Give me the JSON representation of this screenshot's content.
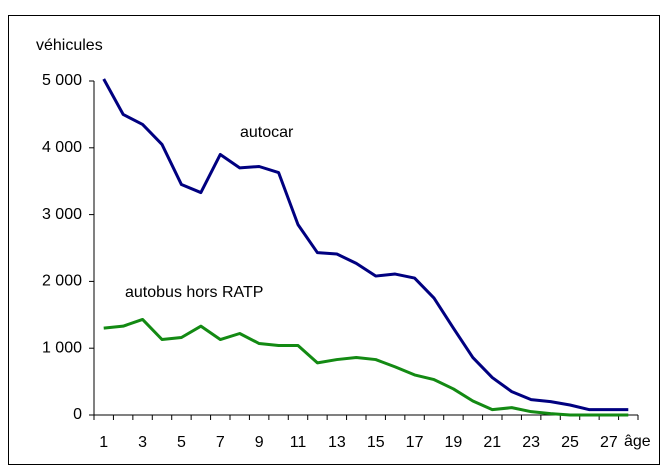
{
  "chart_data": {
    "type": "line",
    "y_label": "véhicules",
    "x_label": "âge",
    "categories": [
      "1",
      null,
      "3",
      null,
      "5",
      null,
      "7",
      null,
      "9",
      null,
      "11",
      null,
      "13",
      null,
      "15",
      null,
      "17",
      null,
      "19",
      null,
      "21",
      null,
      "23",
      null,
      "25",
      null,
      "27",
      null
    ],
    "series": [
      {
        "name": "autocar",
        "color": "#000080",
        "values": [
          5030,
          4500,
          4350,
          4050,
          3450,
          3330,
          3900,
          3700,
          3720,
          3630,
          2850,
          2430,
          2410,
          2270,
          2080,
          2110,
          2050,
          1750,
          1300,
          860,
          560,
          350,
          230,
          200,
          150,
          80,
          80,
          80
        ]
      },
      {
        "name": "autobus hors RATP",
        "color": "#138a13",
        "values": [
          1300,
          1330,
          1430,
          1130,
          1160,
          1330,
          1130,
          1220,
          1070,
          1040,
          1040,
          780,
          830,
          860,
          830,
          720,
          600,
          530,
          390,
          210,
          80,
          110,
          50,
          20,
          0,
          0,
          0,
          0
        ]
      }
    ],
    "ylim": [
      0,
      5000
    ],
    "yticks": [
      0,
      {
        "value": 1000,
        "label": "1 000"
      },
      {
        "value": 2000,
        "label": "2 000"
      },
      {
        "value": 3000,
        "label": "3 000"
      },
      {
        "value": 4000,
        "label": "4 000"
      },
      {
        "value": 5000,
        "label": "5 000"
      }
    ],
    "grid": false
  }
}
